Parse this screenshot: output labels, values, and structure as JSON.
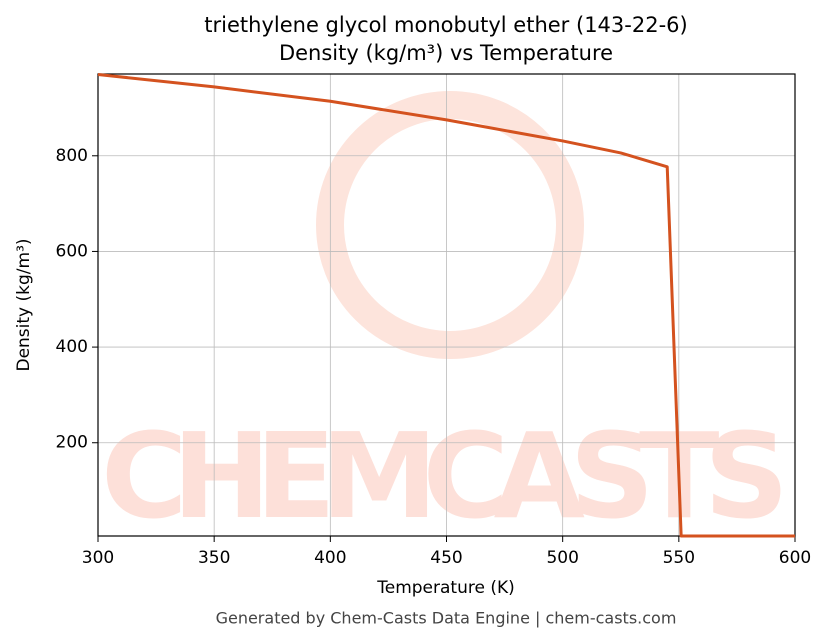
{
  "chart_data": {
    "type": "line",
    "title": [
      "triethylene glycol monobutyl ether (143-22-6)",
      "Density (kg/m³) vs Temperature"
    ],
    "x_label": "Temperature (K)",
    "y_label": "Density (kg/m³)",
    "x": [
      300,
      350,
      400,
      450,
      500,
      525,
      545,
      551,
      600
    ],
    "series": [
      {
        "name": "Density",
        "color": "#d4521f",
        "values": [
          970,
          944,
          914,
          875,
          831,
          806,
          777,
          5,
          5
        ]
      }
    ],
    "xlim": [
      300,
      600
    ],
    "xticks": [
      300,
      350,
      400,
      450,
      500,
      550,
      600
    ],
    "ylim": [
      5,
      971
    ],
    "yticks": [
      200,
      400,
      600,
      800
    ],
    "grid": true,
    "watermark": "CHEMCASTS",
    "footer": "Generated by Chem-Casts Data Engine | chem-casts.com"
  }
}
